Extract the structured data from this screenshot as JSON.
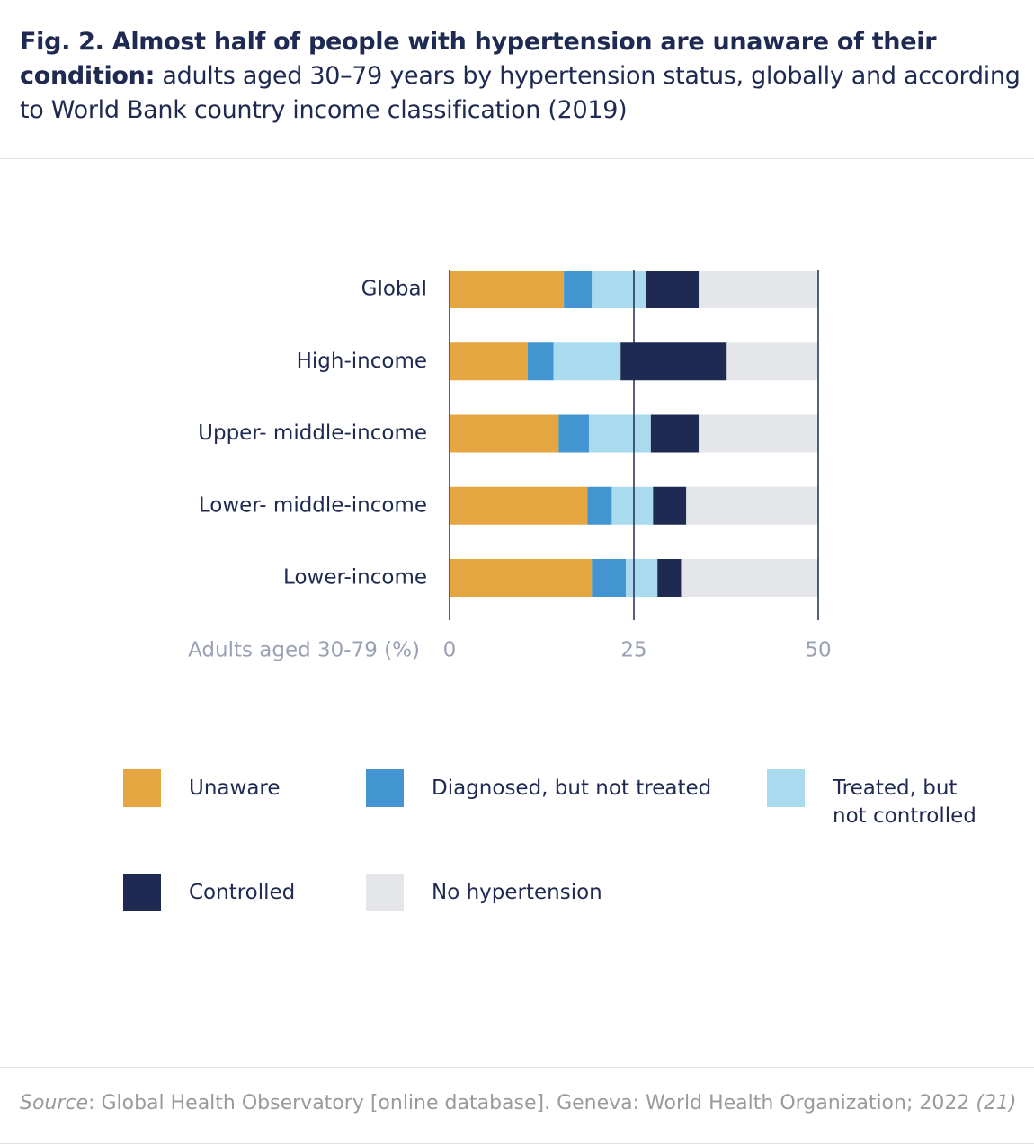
{
  "chart_data": {
    "type": "stacked-bar-horizontal",
    "title": "Fig. 2. Almost half of people with hypertension are unaware of their condition:",
    "subtitle": "adults aged 30–79 years by hypertension status, globally and according to World Bank country income classification (2019)",
    "x_label": "Adults aged 30-79 (%)",
    "categories": [
      "Global",
      "High-income",
      "Upper- middle-income",
      "Lower- middle-income",
      "Lower-income"
    ],
    "series": [
      {
        "name": "Unaware",
        "color": "#e5a540",
        "values": [
          15.5,
          10.6,
          14.8,
          18.7,
          19.3
        ]
      },
      {
        "name": "Diagnosed, but not treated",
        "color": "#4295d1",
        "values": [
          3.8,
          3.5,
          4.1,
          3.3,
          4.6
        ]
      },
      {
        "name": "Treated, but not controlled",
        "color": "#a9daee",
        "values": [
          7.3,
          9.1,
          8.4,
          5.6,
          4.3
        ]
      },
      {
        "name": "Controlled",
        "color": "#1f2a52",
        "values": [
          7.2,
          14.4,
          6.5,
          4.5,
          3.2
        ]
      },
      {
        "name": "No hypertension",
        "color": "#e4e6ea",
        "values": [
          16.2,
          12.3,
          16.2,
          17.9,
          18.7
        ]
      }
    ],
    "xlim": [
      0,
      50
    ],
    "xticks": [
      0,
      25,
      50
    ],
    "grid": true
  },
  "source": {
    "label": "Source",
    "text": ": Global Health Observatory [online database]. Geneva: World Health Organization; 2022",
    "ref": "(21)"
  }
}
